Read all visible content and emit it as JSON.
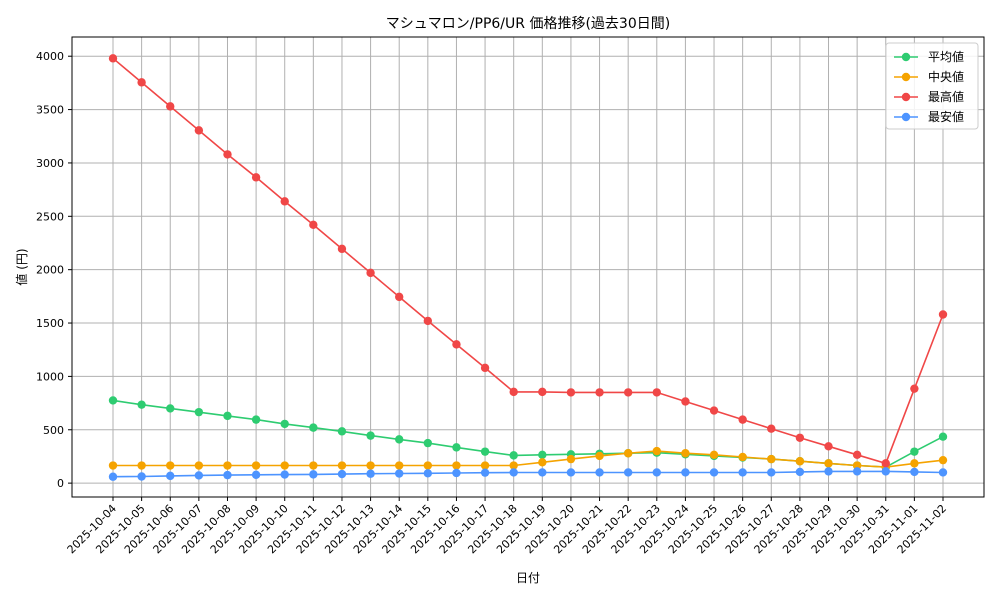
{
  "chart_data": {
    "type": "line",
    "title": "マシュマロン/PP6/UR 価格推移(過去30日間)",
    "xlabel": "日付",
    "ylabel": "値 (円)",
    "ylim": [
      -130,
      4180
    ],
    "yticks": [
      0,
      500,
      1000,
      1500,
      2000,
      2500,
      3000,
      3500,
      4000
    ],
    "grid": true,
    "legend_position": "top-right",
    "categories": [
      "2025-10-04",
      "2025-10-05",
      "2025-10-06",
      "2025-10-07",
      "2025-10-08",
      "2025-10-09",
      "2025-10-10",
      "2025-10-11",
      "2025-10-12",
      "2025-10-13",
      "2025-10-14",
      "2025-10-15",
      "2025-10-16",
      "2025-10-17",
      "2025-10-18",
      "2025-10-19",
      "2025-10-20",
      "2025-10-21",
      "2025-10-22",
      "2025-10-23",
      "2025-10-24",
      "2025-10-25",
      "2025-10-26",
      "2025-10-27",
      "2025-10-28",
      "2025-10-29",
      "2025-10-30",
      "2025-10-31",
      "2025-11-01",
      "2025-11-02"
    ],
    "series": [
      {
        "name": "平均値",
        "color": "#2ecc71",
        "values": [
          775,
          735,
          700,
          665,
          630,
          595,
          555,
          520,
          485,
          445,
          410,
          375,
          335,
          295,
          260,
          265,
          270,
          275,
          280,
          285,
          270,
          255,
          240,
          225,
          205,
          185,
          165,
          150,
          295,
          435
        ]
      },
      {
        "name": "中央値",
        "color": "#f5a300",
        "values": [
          165,
          165,
          165,
          165,
          165,
          165,
          165,
          165,
          165,
          165,
          165,
          165,
          165,
          165,
          165,
          195,
          225,
          255,
          280,
          300,
          280,
          265,
          245,
          225,
          205,
          185,
          165,
          150,
          185,
          215
        ]
      },
      {
        "name": "最高値",
        "color": "#f04747",
        "values": [
          3980,
          3755,
          3530,
          3305,
          3080,
          2865,
          2640,
          2420,
          2195,
          1970,
          1745,
          1520,
          1300,
          1080,
          855,
          855,
          850,
          850,
          850,
          850,
          765,
          680,
          595,
          510,
          425,
          345,
          265,
          185,
          885,
          1580
        ]
      },
      {
        "name": "最安値",
        "color": "#4d94ff",
        "values": [
          60,
          62,
          68,
          72,
          75,
          78,
          80,
          82,
          85,
          88,
          90,
          92,
          95,
          98,
          100,
          100,
          100,
          100,
          100,
          100,
          100,
          100,
          100,
          100,
          105,
          110,
          110,
          110,
          105,
          100
        ]
      }
    ]
  }
}
